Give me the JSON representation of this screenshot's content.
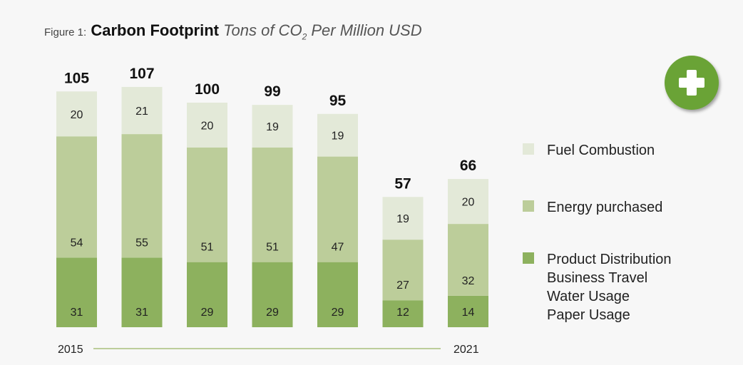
{
  "title": {
    "prefix": "Figure 1:",
    "main": "Carbon Footprint",
    "sub_before": "Tons of CO",
    "sub_subscript": "2",
    "sub_after": " Per Million USD"
  },
  "add_button": {
    "icon": "plus-icon",
    "color": "#6aa336"
  },
  "chart_data": {
    "type": "bar",
    "stacked": true,
    "x_start_label": "2015",
    "x_end_label": "2021",
    "ylim": [
      0,
      110
    ],
    "totals": [
      105,
      107,
      100,
      99,
      95,
      57,
      66
    ],
    "series": [
      {
        "name": "Product Distribution\nBusiness Travel\nWater Usage\nPaper Usage",
        "color": "#8db15e",
        "values": [
          31,
          31,
          29,
          29,
          29,
          12,
          14
        ]
      },
      {
        "name": "Energy purchased",
        "color": "#bccd9a",
        "values": [
          54,
          55,
          51,
          51,
          47,
          27,
          32
        ]
      },
      {
        "name": "Fuel Combustion",
        "color": "#e3e9d8",
        "values": [
          20,
          21,
          20,
          19,
          19,
          19,
          20
        ]
      }
    ]
  },
  "legend": [
    {
      "label": "Fuel Combustion",
      "color": "#e3e9d8"
    },
    {
      "label": "Energy purchased",
      "color": "#bccd9a"
    },
    {
      "lines": [
        "Product Distribution",
        "Business Travel",
        "Water Usage",
        "Paper Usage"
      ],
      "color": "#8db15e"
    }
  ]
}
